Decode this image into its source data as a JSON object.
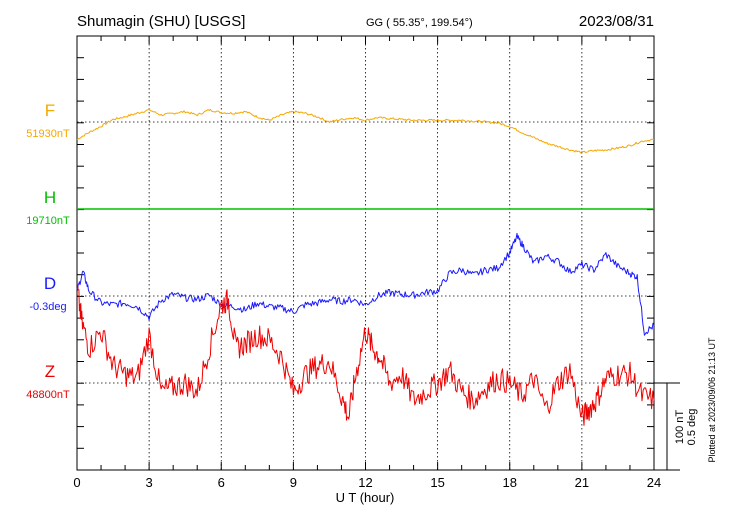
{
  "header": {
    "station": "Shumagin (SHU)  [USGS]",
    "coords": "GG ( 55.35°, 199.54°)",
    "date": "2023/08/31"
  },
  "footer": {
    "plotted": "Plotted at 2023/09/06 21:13 UT"
  },
  "colors": {
    "F": "#f5a800",
    "H": "#00c000",
    "D": "#1a1aff",
    "Z": "#ee0000",
    "axis": "#000000"
  },
  "chart_data": {
    "type": "line",
    "xlabel": "U T (hour)",
    "xlim": [
      0,
      24
    ],
    "xticks": [
      0,
      3,
      6,
      9,
      12,
      15,
      18,
      21,
      24
    ],
    "grid": true,
    "scale_bar": {
      "line1": "100 nT",
      "line2": "0.5 deg"
    },
    "series": [
      {
        "name": "F",
        "baseline_label": "51930nT",
        "x": [
          0,
          0.5,
          1,
          1.5,
          2,
          2.5,
          3,
          3.5,
          4,
          4.5,
          5,
          5.5,
          6,
          6.5,
          7,
          7.5,
          8,
          8.5,
          9,
          9.5,
          10,
          10.5,
          11,
          11.5,
          12,
          12.5,
          13,
          13.5,
          14,
          14.5,
          15,
          15.5,
          16,
          16.5,
          17,
          17.5,
          18,
          18.5,
          19,
          19.5,
          20,
          20.5,
          21,
          21.5,
          22,
          22.5,
          23,
          23.5,
          24
        ],
        "values": [
          -20,
          -12,
          -5,
          3,
          6,
          10,
          14,
          8,
          10,
          12,
          8,
          14,
          11,
          10,
          12,
          6,
          2,
          8,
          12,
          10,
          6,
          0,
          3,
          5,
          2,
          5,
          4,
          3,
          2,
          2,
          2,
          2,
          2,
          1,
          0,
          -1,
          -5,
          -12,
          -18,
          -24,
          -28,
          -32,
          -35,
          -33,
          -32,
          -30,
          -27,
          -22,
          -20
        ]
      },
      {
        "name": "H",
        "baseline_label": "19710nT",
        "x": [
          0,
          24
        ],
        "values": [
          0,
          0
        ]
      },
      {
        "name": "D",
        "baseline_label": "-0.3deg",
        "x": [
          0,
          0.25,
          0.5,
          1,
          1.5,
          2,
          2.5,
          3,
          3.5,
          4,
          4.5,
          5,
          5.5,
          6,
          6.5,
          7,
          7.5,
          8,
          8.5,
          9,
          9.5,
          10,
          10.5,
          11,
          11.5,
          12,
          12.5,
          13,
          13.5,
          14,
          14.5,
          15,
          15.5,
          16,
          16.5,
          17,
          17.5,
          18,
          18.3,
          18.6,
          19,
          19.5,
          20,
          20.5,
          21,
          21.5,
          22,
          22.5,
          23,
          23.3,
          23.6,
          24
        ],
        "values": [
          6,
          28,
          6,
          -8,
          -10,
          -8,
          -12,
          -24,
          -5,
          2,
          -2,
          -4,
          1,
          -10,
          -12,
          -16,
          -8,
          -12,
          -14,
          -18,
          -10,
          -8,
          -4,
          -6,
          -4,
          -10,
          0,
          4,
          2,
          1,
          4,
          6,
          26,
          30,
          24,
          30,
          32,
          50,
          68,
          56,
          38,
          46,
          40,
          28,
          36,
          30,
          48,
          34,
          26,
          22,
          -42,
          -34
        ]
      },
      {
        "name": "Z",
        "baseline_label": "48800nT",
        "x": [
          0,
          0.2,
          0.5,
          1,
          1.5,
          2,
          2.5,
          3,
          3.5,
          4,
          4.5,
          5,
          5.5,
          6,
          6.3,
          6.6,
          7,
          7.5,
          8,
          8.5,
          9,
          9.5,
          10,
          10.5,
          11,
          11.3,
          11.6,
          12,
          12.3,
          12.6,
          13,
          13.5,
          14,
          14.5,
          15,
          15.5,
          16,
          16.5,
          17,
          17.5,
          18,
          18.5,
          19,
          19.5,
          20,
          20.5,
          21,
          21.3,
          21.6,
          22,
          22.5,
          23,
          23.5,
          24
        ],
        "values": [
          110,
          70,
          40,
          60,
          20,
          10,
          5,
          55,
          -10,
          -5,
          0,
          -10,
          40,
          90,
          95,
          40,
          45,
          55,
          50,
          30,
          -10,
          10,
          20,
          25,
          -15,
          -40,
          10,
          60,
          40,
          30,
          0,
          10,
          -20,
          -10,
          0,
          15,
          -10,
          -20,
          -5,
          5,
          0,
          -15,
          5,
          -30,
          0,
          15,
          -40,
          -30,
          -20,
          5,
          10,
          10,
          -15,
          -20
        ]
      }
    ]
  }
}
